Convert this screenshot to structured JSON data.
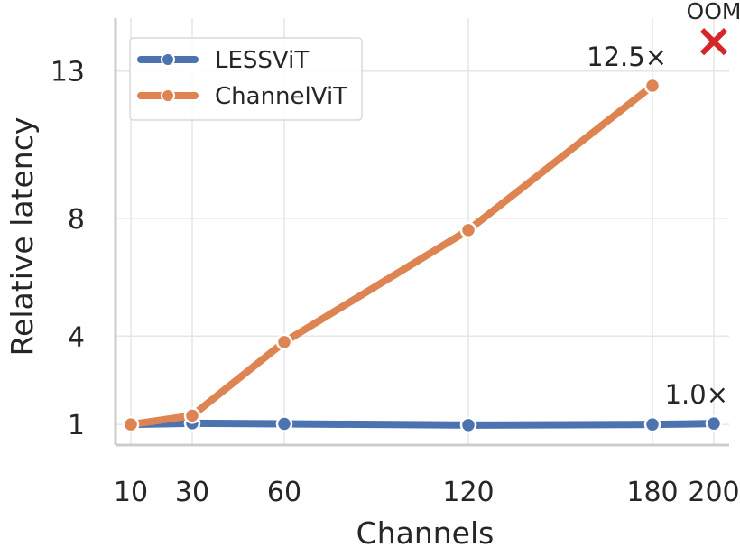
{
  "chart_data": {
    "type": "line",
    "title": "",
    "xlabel": "Channels",
    "ylabel": "Relative latency",
    "x_ticks": [
      10,
      30,
      60,
      120,
      180,
      200
    ],
    "y_ticks": [
      1,
      4,
      8,
      13
    ],
    "xlim": [
      5,
      205
    ],
    "ylim": [
      0.3,
      14.8
    ],
    "grid": true,
    "legend_position": "top-left",
    "series": [
      {
        "name": "LESSViT",
        "color": "#4c72b0",
        "x": [
          10,
          30,
          60,
          120,
          180,
          200
        ],
        "y": [
          1.0,
          1.04,
          1.02,
          0.98,
          1.0,
          1.03
        ]
      },
      {
        "name": "ChannelViT",
        "color": "#dd8452",
        "x": [
          10,
          30,
          60,
          120,
          180
        ],
        "y": [
          1.0,
          1.3,
          3.8,
          7.6,
          12.5
        ]
      }
    ],
    "annotations": [
      {
        "text": "12.5×",
        "x": 180,
        "y": 12.5
      },
      {
        "text": "1.0×",
        "x": 200,
        "y": 1.03
      },
      {
        "text": "OOM",
        "x": 200,
        "y": 14.0,
        "marker": "x",
        "color": "#d62728"
      }
    ]
  }
}
